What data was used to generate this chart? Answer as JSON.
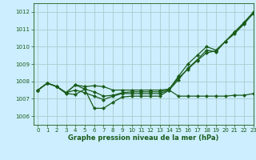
{
  "title": "Graphe pression niveau de la mer (hPa)",
  "bg_color": "#cceeff",
  "grid_color": "#aacccc",
  "line_color": "#1a5c1a",
  "xlim": [
    -0.5,
    23
  ],
  "ylim": [
    1005.5,
    1012.5
  ],
  "yticks": [
    1006,
    1007,
    1008,
    1009,
    1010,
    1011,
    1012
  ],
  "xticks": [
    0,
    1,
    2,
    3,
    4,
    5,
    6,
    7,
    8,
    9,
    10,
    11,
    12,
    13,
    14,
    15,
    16,
    17,
    18,
    19,
    20,
    21,
    22,
    23
  ],
  "series": [
    [
      1007.5,
      1007.9,
      1007.7,
      1007.35,
      1007.8,
      1007.7,
      1007.75,
      1007.7,
      1007.5,
      1007.5,
      1007.5,
      1007.5,
      1007.5,
      1007.5,
      1007.55,
      1008.2,
      1008.7,
      1009.2,
      1009.65,
      1009.75,
      1010.3,
      1010.75,
      1011.3,
      1011.95
    ],
    [
      1007.5,
      1007.9,
      1007.7,
      1007.35,
      1007.8,
      1007.55,
      1007.4,
      1007.15,
      1007.2,
      1007.35,
      1007.4,
      1007.4,
      1007.4,
      1007.4,
      1007.55,
      1008.3,
      1009.0,
      1009.5,
      1010.0,
      1009.8,
      1010.3,
      1010.85,
      1011.4,
      1012.0
    ],
    [
      1007.5,
      1007.9,
      1007.7,
      1007.35,
      1007.5,
      1007.35,
      1007.15,
      1006.95,
      1007.15,
      1007.3,
      1007.3,
      1007.3,
      1007.3,
      1007.3,
      1007.5,
      1008.1,
      1008.75,
      1009.25,
      1009.8,
      1009.7,
      1010.3,
      1010.85,
      1011.35,
      1011.9
    ],
    [
      1007.5,
      1007.9,
      1007.7,
      1007.3,
      1007.25,
      1007.55,
      1006.45,
      1006.45,
      1006.8,
      1007.1,
      1007.15,
      1007.15,
      1007.15,
      1007.15,
      1007.5,
      1007.15,
      1007.15,
      1007.15,
      1007.15,
      1007.15,
      1007.15,
      1007.2,
      1007.2,
      1007.3
    ]
  ]
}
